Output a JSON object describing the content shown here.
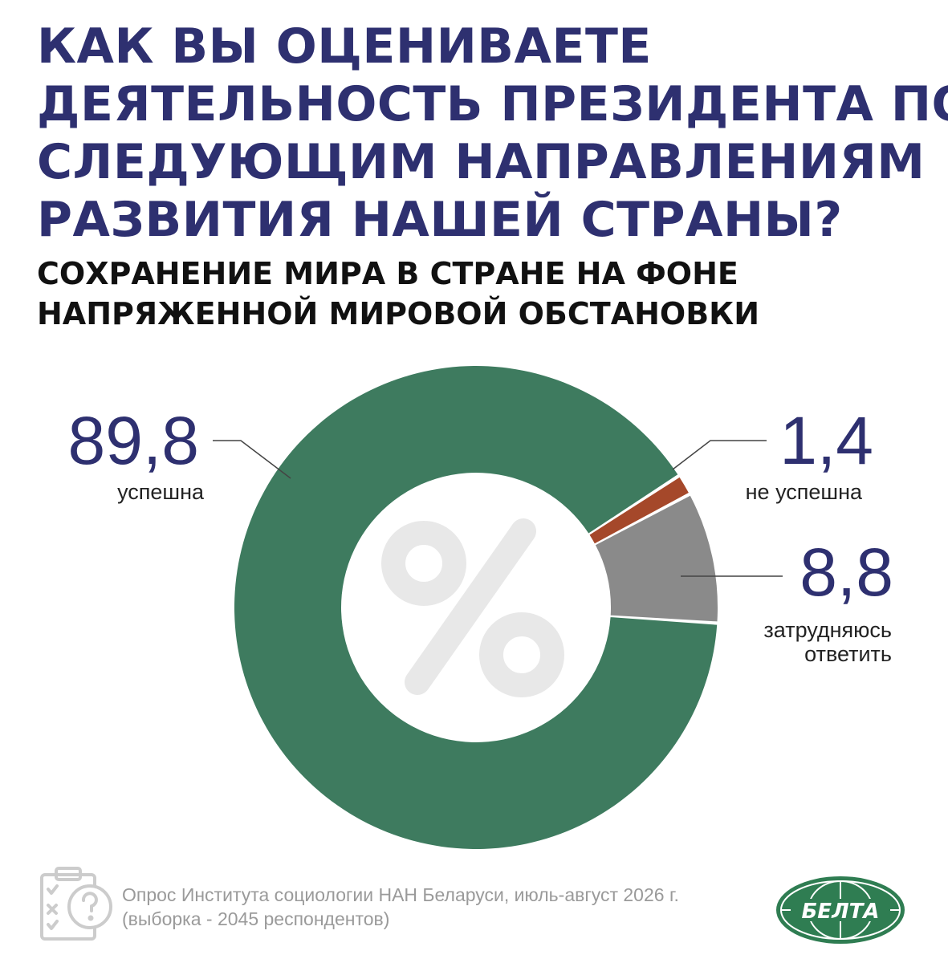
{
  "title_lines": [
    "КАК ВЫ ОЦЕНИВАЕТЕ",
    "ДЕЯТЕЛЬНОСТЬ ПРЕЗИДЕНТА ПО",
    "СЛЕДУЮЩИМ НАПРАВЛЕНИЯМ",
    "РАЗВИТИЯ НАШЕЙ СТРАНЫ?"
  ],
  "subtitle_lines": [
    "СОХРАНЕНИЕ МИРА В СТРАНЕ НА ФОНЕ",
    "НАПРЯЖЕННОЙ МИРОВОЙ ОБСТАНОВКИ"
  ],
  "chart_data": {
    "type": "pie",
    "donut": true,
    "center_symbol": "%",
    "series": [
      {
        "name": "успешна",
        "value": 89.8,
        "value_label": "89,8",
        "label_lines": [
          "успешна"
        ],
        "color": "#3e7b5f"
      },
      {
        "name": "не успешна",
        "value": 1.4,
        "value_label": "1,4",
        "label_lines": [
          "не успешна"
        ],
        "color": "#a5482a"
      },
      {
        "name": "затрудняюсь ответить",
        "value": 8.8,
        "value_label": "8,8",
        "label_lines": [
          "затрудняюсь",
          "ответить"
        ],
        "color": "#8a8a8a"
      }
    ]
  },
  "source": {
    "line1": "Опрос Института социологии НАН Беларуси, июль-август 2026 г.",
    "line2": "(выборка - 2045 респондентов)"
  },
  "logo": {
    "text": "БЕЛТА",
    "color": "#2f7d52"
  },
  "icons": {
    "survey": "clipboard-question-icon"
  }
}
